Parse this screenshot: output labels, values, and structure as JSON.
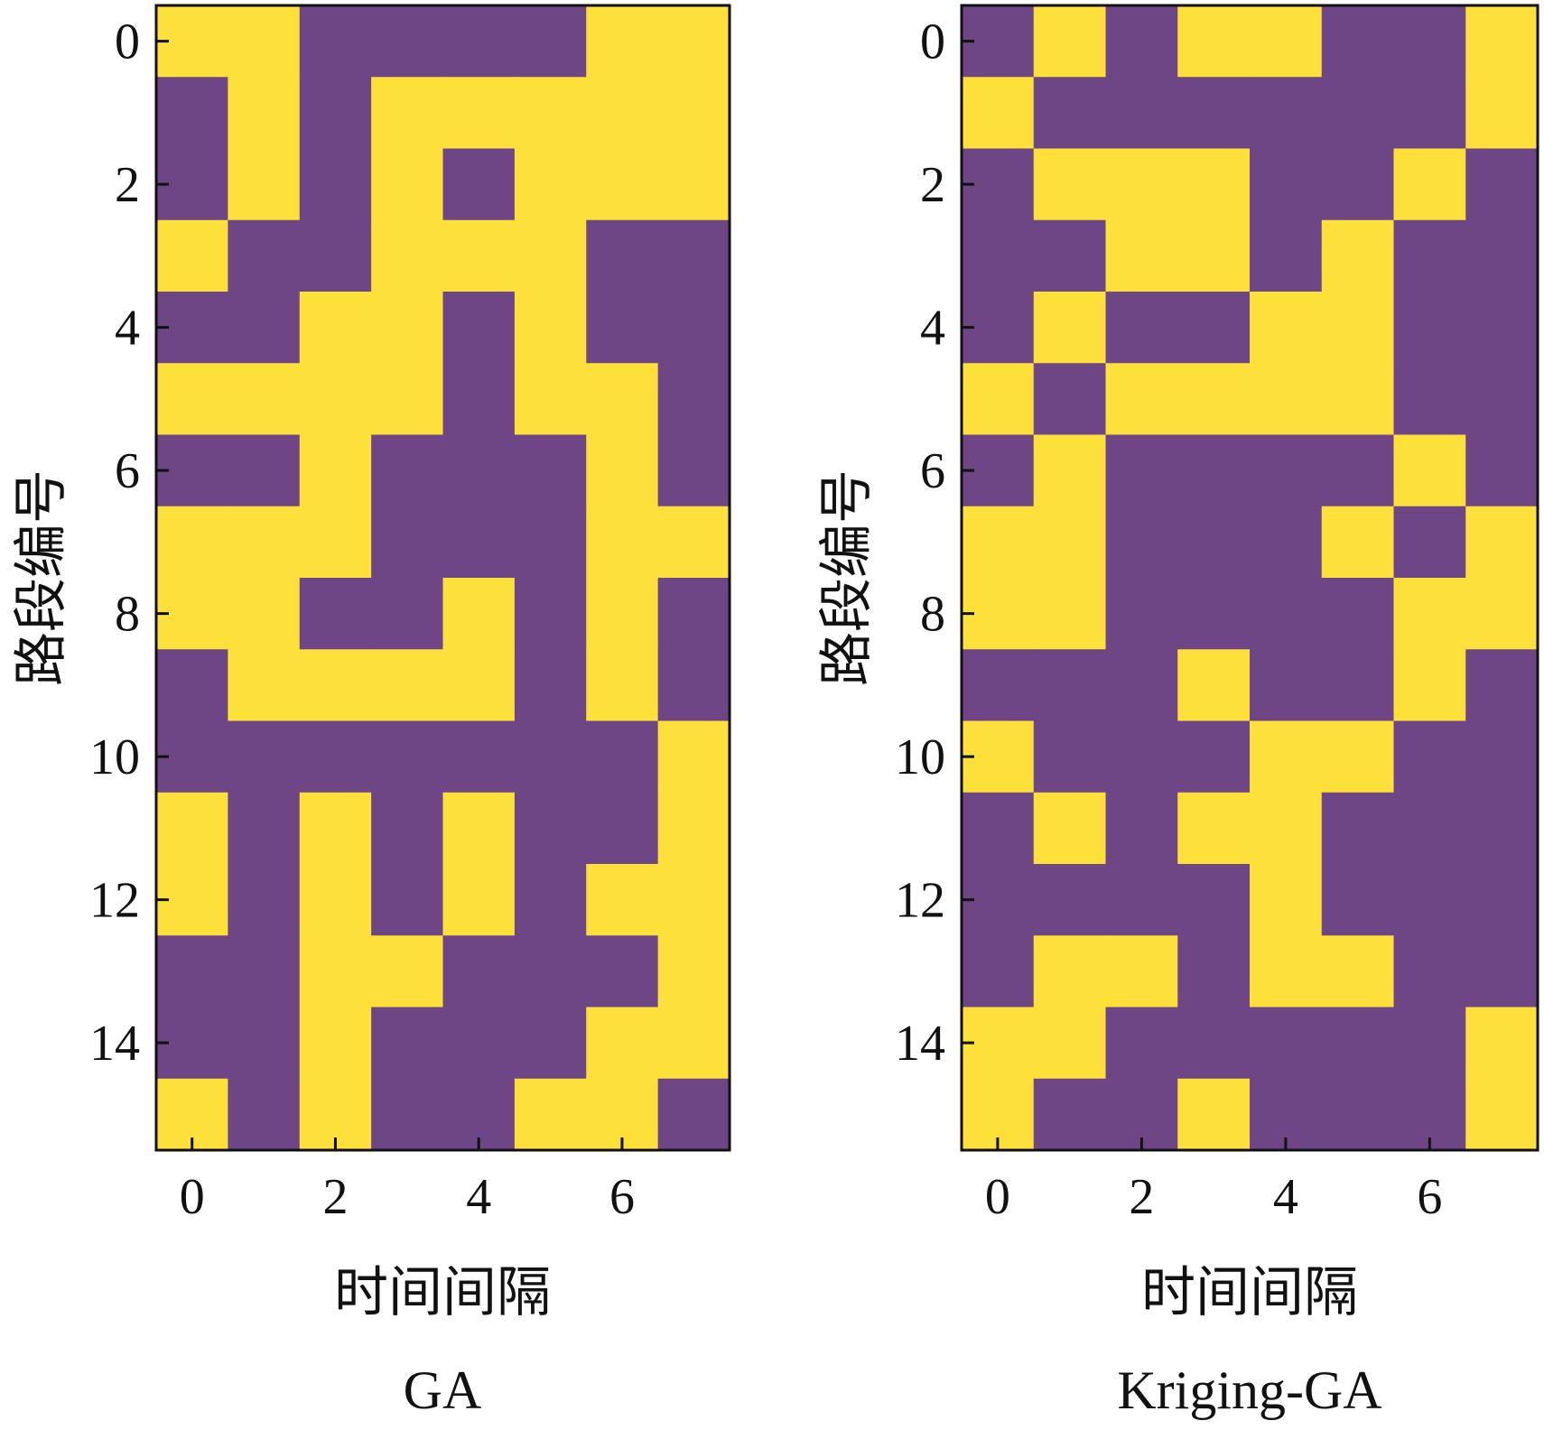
{
  "colors": {
    "value_0": "#6e4585",
    "value_1": "#fde13a",
    "axis": "#111111",
    "background": "#ffffff"
  },
  "chart_data": [
    {
      "type": "heatmap",
      "caption": "GA",
      "xlabel": "时间间隔",
      "ylabel": "路段编号",
      "x_ticks": [
        "0",
        "2",
        "4",
        "6"
      ],
      "y_ticks": [
        "0",
        "2",
        "4",
        "6",
        "8",
        "10",
        "12",
        "14"
      ],
      "x": [
        0,
        1,
        2,
        3,
        4,
        5,
        6,
        7
      ],
      "y": [
        0,
        1,
        2,
        3,
        4,
        5,
        6,
        7,
        8,
        9,
        10,
        11,
        12,
        13,
        14,
        15
      ],
      "values": [
        [
          1,
          1,
          0,
          0,
          0,
          0,
          1,
          1
        ],
        [
          0,
          1,
          0,
          1,
          1,
          1,
          1,
          1
        ],
        [
          0,
          1,
          0,
          1,
          0,
          1,
          1,
          1
        ],
        [
          1,
          0,
          0,
          1,
          1,
          1,
          0,
          0
        ],
        [
          0,
          0,
          1,
          1,
          0,
          1,
          0,
          0
        ],
        [
          1,
          1,
          1,
          1,
          0,
          1,
          1,
          0
        ],
        [
          0,
          0,
          1,
          0,
          0,
          0,
          1,
          0
        ],
        [
          1,
          1,
          1,
          0,
          0,
          0,
          1,
          1
        ],
        [
          1,
          1,
          0,
          0,
          1,
          0,
          1,
          0
        ],
        [
          0,
          1,
          1,
          1,
          1,
          0,
          1,
          0
        ],
        [
          0,
          0,
          0,
          0,
          0,
          0,
          0,
          1
        ],
        [
          1,
          0,
          1,
          0,
          1,
          0,
          0,
          1
        ],
        [
          1,
          0,
          1,
          0,
          1,
          0,
          1,
          1
        ],
        [
          0,
          0,
          1,
          1,
          0,
          0,
          0,
          1
        ],
        [
          0,
          0,
          1,
          0,
          0,
          0,
          1,
          1
        ],
        [
          1,
          0,
          1,
          0,
          0,
          1,
          1,
          0
        ]
      ]
    },
    {
      "type": "heatmap",
      "caption": "Kriging-GA",
      "xlabel": "时间间隔",
      "ylabel": "路段编号",
      "x_ticks": [
        "0",
        "2",
        "4",
        "6"
      ],
      "y_ticks": [
        "0",
        "2",
        "4",
        "6",
        "8",
        "10",
        "12",
        "14"
      ],
      "x": [
        0,
        1,
        2,
        3,
        4,
        5,
        6,
        7
      ],
      "y": [
        0,
        1,
        2,
        3,
        4,
        5,
        6,
        7,
        8,
        9,
        10,
        11,
        12,
        13,
        14,
        15
      ],
      "values": [
        [
          0,
          1,
          0,
          1,
          1,
          0,
          0,
          1
        ],
        [
          1,
          0,
          0,
          0,
          0,
          0,
          0,
          1
        ],
        [
          0,
          1,
          1,
          1,
          0,
          0,
          1,
          0
        ],
        [
          0,
          0,
          1,
          1,
          0,
          1,
          0,
          0
        ],
        [
          0,
          1,
          0,
          0,
          1,
          1,
          0,
          0
        ],
        [
          1,
          0,
          1,
          1,
          1,
          1,
          0,
          0
        ],
        [
          0,
          1,
          0,
          0,
          0,
          0,
          1,
          0
        ],
        [
          1,
          1,
          0,
          0,
          0,
          1,
          0,
          1
        ],
        [
          1,
          1,
          0,
          0,
          0,
          0,
          1,
          1
        ],
        [
          0,
          0,
          0,
          1,
          0,
          0,
          1,
          0
        ],
        [
          1,
          0,
          0,
          0,
          1,
          1,
          0,
          0
        ],
        [
          0,
          1,
          0,
          1,
          1,
          0,
          0,
          0
        ],
        [
          0,
          0,
          0,
          0,
          1,
          0,
          0,
          0
        ],
        [
          0,
          1,
          1,
          0,
          1,
          1,
          0,
          0
        ],
        [
          1,
          1,
          0,
          0,
          0,
          0,
          0,
          1
        ],
        [
          1,
          0,
          0,
          1,
          0,
          0,
          0,
          1
        ]
      ]
    }
  ]
}
